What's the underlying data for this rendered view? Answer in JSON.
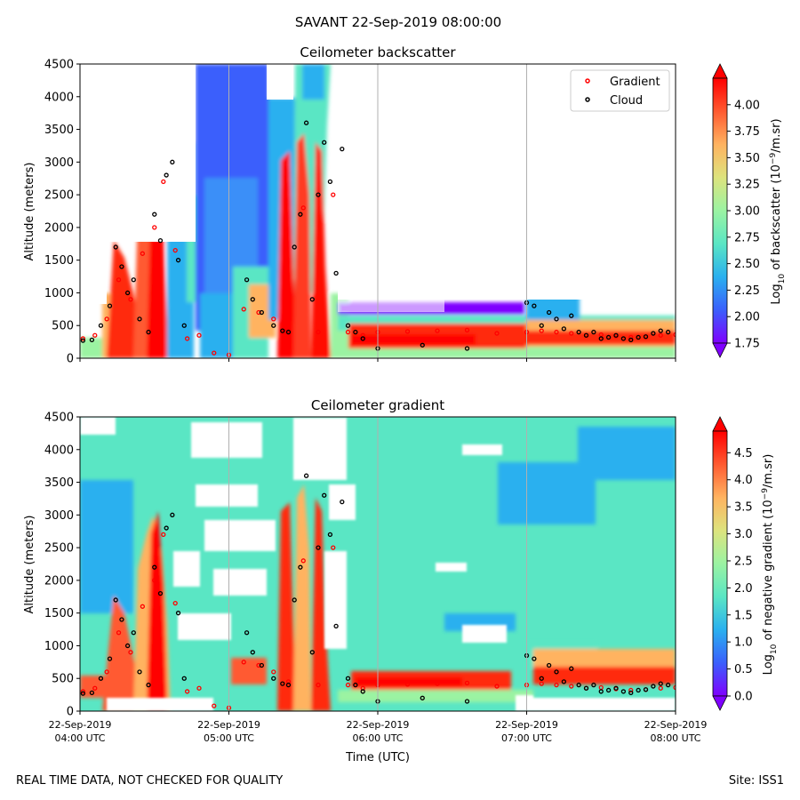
{
  "figure": {
    "suptitle": "SAVANT 22-Sep-2019 08:00:00",
    "footer_left": "REAL TIME DATA, NOT CHECKED FOR QUALITY",
    "footer_right": "Site: ISS1"
  },
  "colors": {
    "rainbow_stops": [
      "#7f00ff",
      "#3a5ffc",
      "#2ab0ef",
      "#5ae6c4",
      "#9bf3a2",
      "#dde37d",
      "#ffb360",
      "#ff5a30",
      "#ff0000"
    ],
    "gradient_marker": "#ff0000",
    "cloud_marker": "#000000",
    "gridline": "#b0b0b0"
  },
  "chart_data": [
    {
      "type": "heatmap",
      "title": "Ceilometer backscatter",
      "ylabel": "Altitude (meters)",
      "xlabel": "",
      "ylim": [
        0,
        4500
      ],
      "yticks": [
        0,
        500,
        1000,
        1500,
        2000,
        2500,
        3000,
        3500,
        4000,
        4500
      ],
      "xlim_hours": [
        4,
        8
      ],
      "xticks_hours": [
        4,
        5,
        6,
        7,
        8
      ],
      "xtick_labels_shown": false,
      "grid": "vertical lines at tick positions",
      "legend": {
        "placement": "upper-right",
        "entries": [
          {
            "label": "Gradient",
            "color": "#ff0000"
          },
          {
            "label": "Cloud",
            "color": "#000000"
          }
        ]
      },
      "colorbar": {
        "label": "Log10 of backscatter (10^-9/m.sr)",
        "range": [
          1.75,
          4.25
        ],
        "ticks": [
          "1.75",
          "2.00",
          "2.25",
          "2.50",
          "2.75",
          "3.00",
          "3.25",
          "3.50",
          "3.75",
          "4.00"
        ],
        "extend": "both"
      },
      "series": [
        {
          "name": "Gradient",
          "marker": "dot",
          "color": "#ff0000",
          "x": [
            4.02,
            4.1,
            4.18,
            4.26,
            4.34,
            4.42,
            4.5,
            4.56,
            4.64,
            4.72,
            4.8,
            4.9,
            5.0,
            5.1,
            5.2,
            5.3,
            5.4,
            5.5,
            5.6,
            5.7,
            5.8,
            5.9,
            6.0,
            6.2,
            6.4,
            6.6,
            6.8,
            7.0,
            7.1,
            7.2,
            7.3,
            7.4,
            7.5,
            7.6,
            7.7,
            7.8,
            7.9,
            8.0
          ],
          "y": [
            300,
            350,
            600,
            1200,
            900,
            1600,
            2000,
            2700,
            1650,
            300,
            350,
            80,
            50,
            750,
            700,
            600,
            450,
            2300,
            400,
            2500,
            400,
            350,
            400,
            410,
            420,
            430,
            380,
            400,
            420,
            400,
            380,
            350,
            360,
            340,
            320,
            330,
            350,
            360
          ]
        },
        {
          "name": "Cloud",
          "marker": "dot",
          "color": "#000000",
          "x": [
            4.02,
            4.08,
            4.14,
            4.2,
            4.24,
            4.28,
            4.32,
            4.36,
            4.4,
            4.46,
            4.5,
            4.54,
            4.58,
            4.62,
            4.66,
            4.7,
            5.12,
            5.16,
            5.22,
            5.3,
            5.36,
            5.4,
            5.44,
            5.48,
            5.52,
            5.56,
            5.6,
            5.64,
            5.68,
            5.72,
            5.76,
            5.8,
            5.85,
            5.9,
            6.0,
            6.3,
            6.6,
            7.0,
            7.05,
            7.1,
            7.15,
            7.2,
            7.25,
            7.3,
            7.35,
            7.4,
            7.45,
            7.5,
            7.55,
            7.6,
            7.65,
            7.7,
            7.75,
            7.8,
            7.85,
            7.9,
            7.95
          ],
          "y": [
            270,
            280,
            500,
            800,
            1700,
            1400,
            1000,
            1200,
            600,
            400,
            2200,
            1800,
            2800,
            3000,
            1500,
            500,
            1200,
            900,
            700,
            500,
            420,
            400,
            1700,
            2200,
            3600,
            900,
            2500,
            3300,
            2700,
            1300,
            3200,
            500,
            400,
            300,
            150,
            200,
            150,
            850,
            800,
            500,
            700,
            600,
            450,
            650,
            400,
            350,
            400,
            300,
            320,
            350,
            300,
            280,
            320,
            330,
            380,
            420,
            400
          ]
        }
      ]
    },
    {
      "type": "heatmap",
      "title": "Ceilometer gradient",
      "ylabel": "Altitude (meters)",
      "xlabel": "Time (UTC)",
      "ylim": [
        0,
        4500
      ],
      "yticks": [
        0,
        500,
        1000,
        1500,
        2000,
        2500,
        3000,
        3500,
        4000,
        4500
      ],
      "xlim_hours": [
        4,
        8
      ],
      "xticks_hours": [
        4,
        5,
        6,
        7,
        8
      ],
      "xtick_labels": [
        {
          "date": "22-Sep-2019",
          "time": "04:00 UTC"
        },
        {
          "date": "22-Sep-2019",
          "time": "05:00 UTC"
        },
        {
          "date": "22-Sep-2019",
          "time": "06:00 UTC"
        },
        {
          "date": "22-Sep-2019",
          "time": "07:00 UTC"
        },
        {
          "date": "22-Sep-2019",
          "time": "08:00 UTC"
        }
      ],
      "grid": "vertical lines at tick positions",
      "colorbar": {
        "label": "Log10 of negative gradient (10^-9/m.sr)",
        "range": [
          0.0,
          4.9
        ],
        "ticks": [
          "0.0",
          "0.5",
          "1.0",
          "1.5",
          "2.0",
          "2.5",
          "3.0",
          "3.5",
          "4.0",
          "4.5"
        ],
        "extend": "both"
      }
    }
  ]
}
